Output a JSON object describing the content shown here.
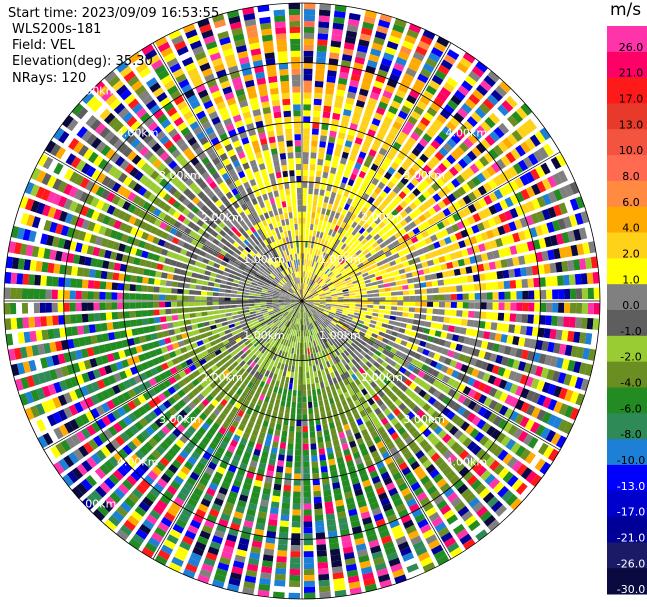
{
  "meta": {
    "start_time": "Start time: 2023/09/09 16:53:55",
    "instrument": "WLS200s-181",
    "field": "Field: VEL",
    "elevation": "Elevation(deg): 35.30",
    "nrays": "NRays: 120"
  },
  "chart_data": {
    "type": "heatmap",
    "subtype": "polar-ppi",
    "field": "VEL",
    "units": "m/s",
    "elevation_deg": 35.3,
    "n_rays": 120,
    "range_max_km": 5.0,
    "range_ring_labels": [
      "1.00km",
      "2.00km",
      "3.00km",
      "4.00km",
      "5.00km"
    ],
    "range_rings_km": [
      1,
      2,
      3,
      4,
      5
    ],
    "colorbar": {
      "title": "m/s",
      "tick_labels": [
        "26.0",
        "21.0",
        "17.0",
        "13.0",
        "10.0",
        "8.0",
        "6.0",
        "4.0",
        "2.0",
        "1.0",
        "0.0",
        "-1.0",
        "-2.0",
        "-4.0",
        "-6.0",
        "-8.0",
        "-10.0",
        "-13.0",
        "-17.0",
        "-21.0",
        "-26.0",
        "-30.0"
      ],
      "bins": [
        {
          "lo": 26,
          "hi": 30,
          "color": "#ff33aa"
        },
        {
          "lo": 21,
          "hi": 26,
          "color": "#ff0066"
        },
        {
          "lo": 17,
          "hi": 21,
          "color": "#ff1a1a"
        },
        {
          "lo": 13,
          "hi": 17,
          "color": "#e83a2a"
        },
        {
          "lo": 10,
          "hi": 13,
          "color": "#f25440"
        },
        {
          "lo": 8,
          "hi": 10,
          "color": "#ff6a50"
        },
        {
          "lo": 6,
          "hi": 8,
          "color": "#ff8a40"
        },
        {
          "lo": 4,
          "hi": 6,
          "color": "#ffaa00"
        },
        {
          "lo": 2,
          "hi": 4,
          "color": "#ffd21a"
        },
        {
          "lo": 1,
          "hi": 2,
          "color": "#ffff00"
        },
        {
          "lo": 0,
          "hi": 1,
          "color": "#808080"
        },
        {
          "lo": -1,
          "hi": 0,
          "color": "#5e5e5e"
        },
        {
          "lo": -2,
          "hi": -1,
          "color": "#99cc33"
        },
        {
          "lo": -4,
          "hi": -2,
          "color": "#6b8e23"
        },
        {
          "lo": -6,
          "hi": -4,
          "color": "#228b22"
        },
        {
          "lo": -8,
          "hi": -6,
          "color": "#2e8b57"
        },
        {
          "lo": -10,
          "hi": -8,
          "color": "#1e7fd6"
        },
        {
          "lo": -13,
          "hi": -10,
          "color": "#0000ff"
        },
        {
          "lo": -17,
          "hi": -13,
          "color": "#0000cc"
        },
        {
          "lo": -21,
          "hi": -17,
          "color": "#000099"
        },
        {
          "lo": -26,
          "hi": -21,
          "color": "#1a1a66"
        },
        {
          "lo": -30,
          "hi": -26,
          "color": "#0a0a40"
        }
      ]
    },
    "approx_velocity_by_range_km": [
      {
        "range": 0.5,
        "NE": 1.5,
        "SE": 1.5,
        "SW": -2.0,
        "NW": -0.5
      },
      {
        "range": 1.5,
        "NE": 1.5,
        "SE": 1.5,
        "SW": -4.0,
        "NW": -1.5
      },
      {
        "range": 2.5,
        "NE": 3.0,
        "SE": 2.0,
        "SW": -6.0,
        "NW": -5.0
      },
      {
        "range": 3.5,
        "NE": 6.0,
        "SE": 1.0,
        "SW": -7.0,
        "NW": -5.0
      },
      {
        "range": 4.5,
        "NE": 9.0,
        "SE": -2.0,
        "SW": -9.0,
        "NW": -6.0
      }
    ]
  }
}
